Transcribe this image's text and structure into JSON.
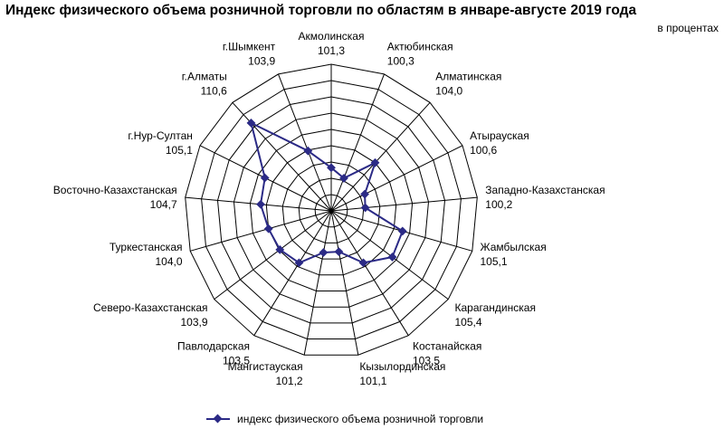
{
  "title": "Индекс физического объема розничной торговли по областям в январе-августе 2019 года",
  "unit_label": "в процентах",
  "colors": {
    "series": "#2b2a86",
    "grid": "#000000",
    "background": "#ffffff"
  },
  "chart_data": {
    "type": "radar",
    "title": "Индекс физического объема розничной торговли по областям в январе-августе 2019 года",
    "unit": "в процентах",
    "categories": [
      "Акмолинская",
      "Актюбинская",
      "Алматинская",
      "Атырауская",
      "Западно-Казахстанская",
      "Жамбылская",
      "Карагандинская",
      "Костанайская",
      "Кызылординская",
      "Мангистауская",
      "Павлодарская",
      "Северо-Казахстанская",
      "Туркестанская",
      "Восточно-Казахстанская",
      "г.Нур-Султан",
      "г.Алматы",
      "г.Шымкент"
    ],
    "value_labels": [
      "101,3",
      "100,3",
      "104,0",
      "100,6",
      "100,2",
      "105,1",
      "105,4",
      "103,5",
      "101,1",
      "101,2",
      "103,5",
      "103,9",
      "104,0",
      "104,7",
      "105,1",
      "110,6",
      "103,9"
    ],
    "series": [
      {
        "name": "индекс физического объема розничной торговли",
        "values": [
          101.3,
          100.3,
          104.0,
          100.6,
          100.2,
          105.1,
          105.4,
          103.5,
          101.1,
          101.2,
          103.5,
          103.9,
          104.0,
          104.7,
          105.1,
          110.6,
          103.9
        ]
      }
    ],
    "rlim": [
      96,
      114
    ],
    "grid": true,
    "legend": "bottom"
  }
}
